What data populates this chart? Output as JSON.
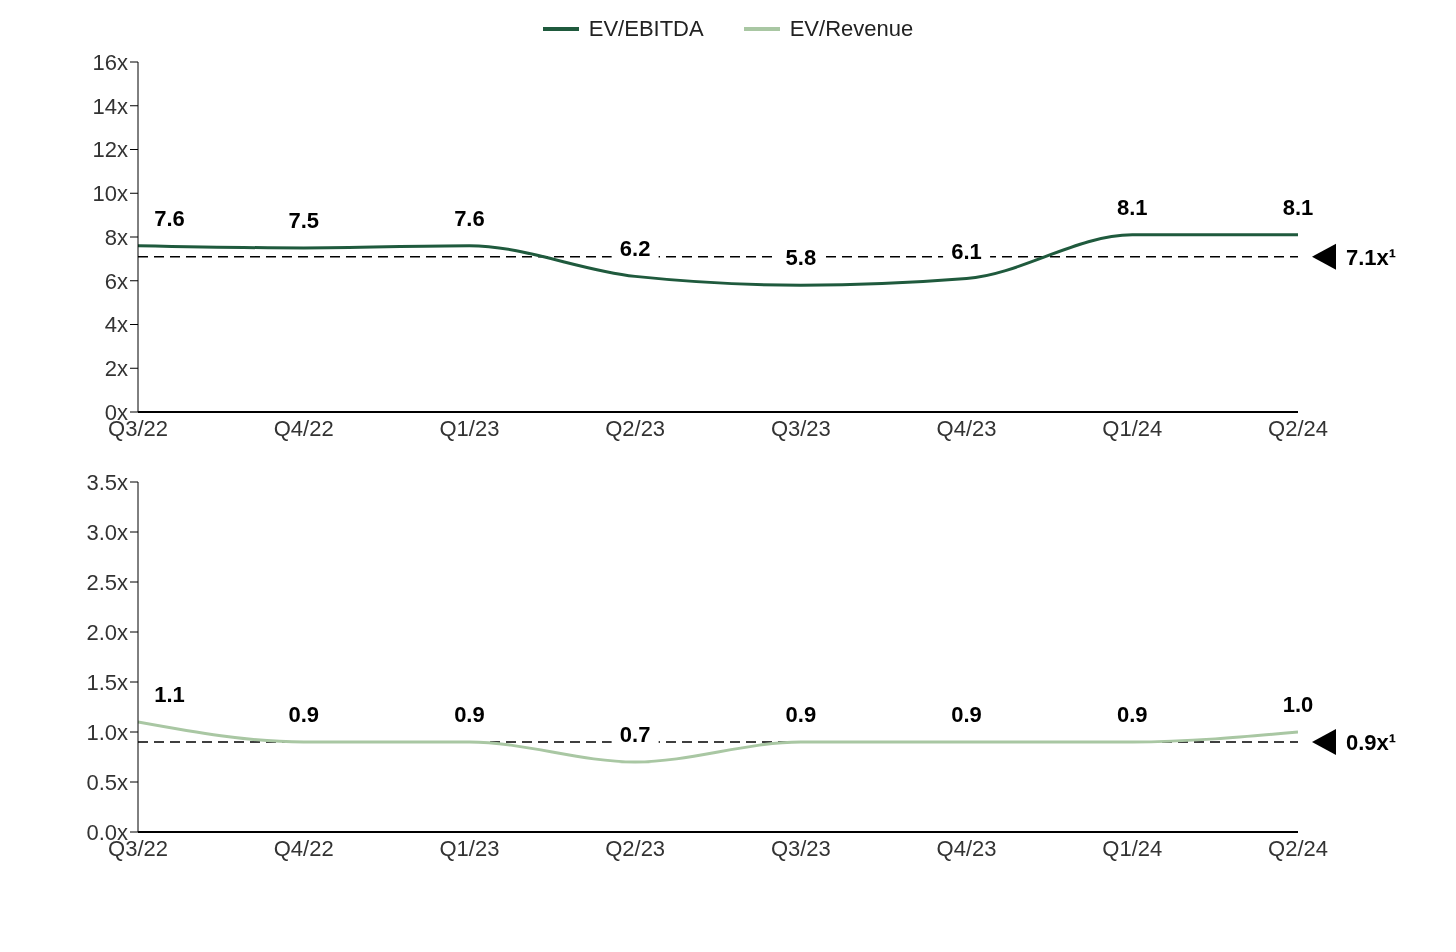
{
  "chart_data": [
    {
      "type": "line",
      "categories": [
        "Q3/22",
        "Q4/22",
        "Q1/23",
        "Q2/23",
        "Q3/23",
        "Q4/23",
        "Q1/24",
        "Q2/24"
      ],
      "series": [
        {
          "name": "EV/EBITDA",
          "color": "#1f5a3d",
          "values": [
            7.6,
            7.5,
            7.6,
            6.2,
            5.8,
            6.1,
            8.1,
            8.1
          ]
        }
      ],
      "ylim": [
        0,
        16
      ],
      "yticks": [
        {
          "value": 0,
          "label": "0x"
        },
        {
          "value": 2,
          "label": "2x"
        },
        {
          "value": 4,
          "label": "4x"
        },
        {
          "value": 6,
          "label": "6x"
        },
        {
          "value": 8,
          "label": "8x"
        },
        {
          "value": 10,
          "label": "10x"
        },
        {
          "value": 12,
          "label": "12x"
        },
        {
          "value": 14,
          "label": "14x"
        },
        {
          "value": 16,
          "label": "16x"
        }
      ],
      "ref_lines": [
        {
          "axis": "y",
          "value": 7.1,
          "label": "7.1x¹",
          "color": "#000000",
          "line_style": "dashed"
        }
      ],
      "data_labels": true,
      "grid": false,
      "legend": "top",
      "marker": "none",
      "line_style": "solid"
    },
    {
      "type": "line",
      "categories": [
        "Q3/22",
        "Q4/22",
        "Q1/23",
        "Q2/23",
        "Q3/23",
        "Q4/23",
        "Q1/24",
        "Q2/24"
      ],
      "series": [
        {
          "name": "EV/Revenue",
          "color": "#a9c7a3",
          "values": [
            1.1,
            0.9,
            0.9,
            0.7,
            0.9,
            0.9,
            0.9,
            1.0
          ],
          "value_labels": [
            "1.1",
            "0.9",
            "0.9",
            "0.7",
            "0.9",
            "0.9",
            "0.9",
            "1.0"
          ]
        }
      ],
      "ylim": [
        0,
        3.5
      ],
      "yticks": [
        {
          "value": 0,
          "label": "0.0x"
        },
        {
          "value": 0.5,
          "label": "0.5x"
        },
        {
          "value": 1,
          "label": "1.0x"
        },
        {
          "value": 1.5,
          "label": "1.5x"
        },
        {
          "value": 2,
          "label": "2.0x"
        },
        {
          "value": 2.5,
          "label": "2.5x"
        },
        {
          "value": 3,
          "label": "3.0x"
        },
        {
          "value": 3.5,
          "label": "3.5x"
        }
      ],
      "ref_lines": [
        {
          "axis": "y",
          "value": 0.9,
          "label": "0.9x¹",
          "color": "#000000",
          "line_style": "dashed"
        }
      ],
      "grid": false,
      "legend": "top",
      "marker": "none",
      "line_style": "solid"
    }
  ]
}
